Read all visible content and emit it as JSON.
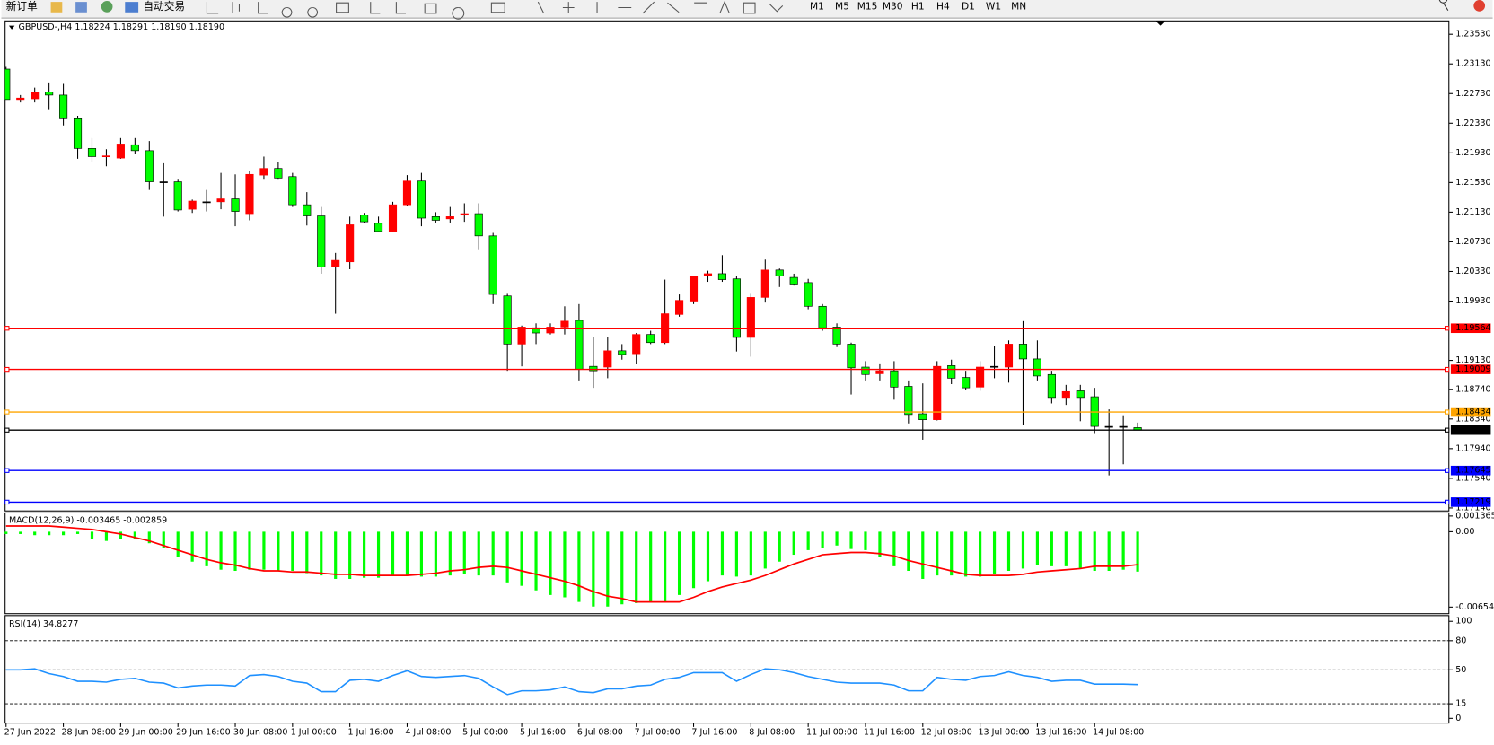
{
  "toolbar": {
    "new_order": "新订单",
    "auto_trading": "自动交易",
    "timeframes": [
      "M1",
      "M5",
      "M15",
      "M30",
      "H1",
      "H4",
      "D1",
      "W1",
      "MN"
    ]
  },
  "chart_data": [
    {
      "type": "candlestick",
      "title": "GBPUSD-,H4  1.18224 1.18291 1.18190 1.18190",
      "categories": [
        "27 Jun 2022",
        null,
        null,
        null,
        "28 Jun 08:00",
        null,
        null,
        null,
        "29 Jun 00:00",
        null,
        null,
        null,
        "29 Jun 16:00",
        null,
        null,
        null,
        "30 Jun 08:00",
        null,
        null,
        null,
        "1 Jul 00:00",
        null,
        null,
        null,
        "1 Jul 16:00",
        null,
        null,
        null,
        "4 Jul 08:00",
        null,
        null,
        null,
        "5 Jul 00:00",
        null,
        null,
        null,
        "5 Jul 16:00",
        null,
        null,
        null,
        "6 Jul 08:00",
        null,
        null,
        null,
        "7 Jul 00:00",
        null,
        null,
        null,
        "7 Jul 16:00",
        null,
        null,
        null,
        "8 Jul 08:00",
        null,
        null,
        null,
        "11 Jul 00:00",
        null,
        null,
        null,
        "11 Jul 16:00",
        null,
        null,
        null,
        "12 Jul 08:00",
        null,
        null,
        null,
        "13 Jul 00:00",
        null,
        null,
        null,
        "13 Jul 16:00",
        null,
        null,
        null,
        "14 Jul 08:00",
        null,
        null,
        null
      ],
      "open": [
        1.2306,
        1.2265,
        1.2266,
        1.2275,
        1.2271,
        1.2239,
        1.2199,
        1.2188,
        1.2186,
        1.2204,
        1.2196,
        1.2154,
        1.2154,
        1.2117,
        1.2127,
        1.2127,
        1.2131,
        1.2111,
        1.2163,
        1.2172,
        1.2161,
        1.2123,
        1.2108,
        1.2039,
        1.2046,
        1.2109,
        1.2098,
        1.2087,
        1.2123,
        1.2155,
        1.2107,
        1.2104,
        1.2109,
        1.2111,
        1.2081,
        1.2,
        1.1935,
        1.1957,
        1.195,
        1.1958,
        1.1967,
        1.1905,
        1.1904,
        1.1926,
        1.1922,
        1.1948,
        1.1937,
        1.1975,
        1.1993,
        1.2027,
        1.203,
        1.2023,
        1.1944,
        1.1998,
        1.2035,
        1.2025,
        1.2018,
        1.1986,
        1.1958,
        1.1935,
        1.1904,
        1.1895,
        1.1899,
        1.1878,
        1.1841,
        1.1833,
        1.1906,
        1.189,
        1.1877,
        1.1905,
        1.1904,
        1.1935,
        1.1915,
        1.1894,
        1.1863,
        1.1872,
        1.1864,
        1.1824,
        1.1824,
        1.18224
      ],
      "high": [
        1.2309,
        1.2271,
        1.2281,
        1.2288,
        1.2286,
        1.2243,
        1.2213,
        1.2198,
        1.2213,
        1.2213,
        1.2209,
        1.2179,
        1.2158,
        1.213,
        1.2143,
        1.2166,
        1.2164,
        1.2168,
        1.2188,
        1.2181,
        1.2166,
        1.214,
        1.212,
        1.2058,
        1.2107,
        1.2112,
        1.2107,
        1.2127,
        1.2163,
        1.2166,
        1.2113,
        1.212,
        1.2125,
        1.2125,
        1.2085,
        1.2004,
        1.196,
        1.1963,
        1.1963,
        1.1986,
        1.1989,
        1.1944,
        1.1944,
        1.1935,
        1.195,
        1.1953,
        1.2022,
        1.2002,
        1.2027,
        1.2034,
        1.2055,
        1.2027,
        1.2004,
        1.2049,
        1.2037,
        1.203,
        1.2023,
        1.1989,
        1.1963,
        1.1937,
        1.1912,
        1.1909,
        1.1912,
        1.1886,
        1.1882,
        1.1912,
        1.1914,
        1.1899,
        1.1912,
        1.1933,
        1.194,
        1.1966,
        1.194,
        1.1899,
        1.188,
        1.188,
        1.1876,
        1.1847,
        1.1839,
        1.18291
      ],
      "low": [
        1.2265,
        1.2261,
        1.2261,
        1.2252,
        1.223,
        1.2185,
        1.2181,
        1.2175,
        1.2185,
        1.2191,
        1.2143,
        1.2107,
        1.2114,
        1.2112,
        1.2114,
        1.2117,
        1.2094,
        1.2102,
        1.2158,
        1.2158,
        1.212,
        1.2095,
        1.203,
        1.1976,
        1.2036,
        1.2098,
        1.2086,
        1.2086,
        1.2121,
        1.2094,
        1.2099,
        1.2099,
        1.21,
        1.2063,
        1.1989,
        1.1899,
        1.1905,
        1.1935,
        1.1948,
        1.1948,
        1.1886,
        1.1876,
        1.1889,
        1.1914,
        1.1908,
        1.1935,
        1.1935,
        1.1972,
        1.1989,
        1.2019,
        1.2019,
        1.1925,
        1.1918,
        1.1991,
        1.2012,
        1.2014,
        1.1982,
        1.1953,
        1.1931,
        1.1867,
        1.1886,
        1.1886,
        1.186,
        1.1828,
        1.1806,
        1.1832,
        1.1881,
        1.1873,
        1.1872,
        1.1889,
        1.1883,
        1.1826,
        1.1886,
        1.1855,
        1.1853,
        1.1831,
        1.1815,
        1.1758,
        1.1773,
        1.1819
      ],
      "close": [
        1.2265,
        1.2267,
        1.2275,
        1.2271,
        1.2239,
        1.2199,
        1.2188,
        1.2189,
        1.2205,
        1.2196,
        1.2154,
        1.2154,
        1.2116,
        1.2128,
        1.2127,
        1.2131,
        1.2114,
        1.2164,
        1.2172,
        1.2159,
        1.2123,
        1.2108,
        1.2039,
        1.2048,
        1.2096,
        1.21,
        1.2087,
        1.2123,
        1.2155,
        1.2105,
        1.2102,
        1.2107,
        1.2111,
        1.2081,
        1.2002,
        1.1935,
        1.1958,
        1.195,
        1.1958,
        1.1966,
        1.1901,
        1.1899,
        1.1926,
        1.1921,
        1.1948,
        1.1937,
        1.1976,
        1.1994,
        1.2026,
        1.203,
        1.2022,
        1.1944,
        1.1998,
        1.2035,
        1.2027,
        1.2016,
        1.1986,
        1.1957,
        1.1935,
        1.1903,
        1.1894,
        1.1899,
        1.1877,
        1.184,
        1.1833,
        1.1905,
        1.1889,
        1.1876,
        1.1904,
        1.1905,
        1.1935,
        1.1915,
        1.1892,
        1.1863,
        1.1871,
        1.1863,
        1.1824,
        1.1824,
        1.1824,
        1.1819
      ],
      "up_color": "#ff0000",
      "down_color": "#00ff00",
      "ylim": [
        1.171,
        1.2371
      ],
      "yticks": [
        {
          "value": 1.2353,
          "label": "1.23530"
        },
        {
          "value": 1.2313,
          "label": "1.23130"
        },
        {
          "value": 1.2273,
          "label": "1.22730"
        },
        {
          "value": 1.2233,
          "label": "1.22330"
        },
        {
          "value": 1.2193,
          "label": "1.21930"
        },
        {
          "value": 1.2153,
          "label": "1.21530"
        },
        {
          "value": 1.2113,
          "label": "1.21130"
        },
        {
          "value": 1.2073,
          "label": "1.20730"
        },
        {
          "value": 1.2033,
          "label": "1.20330"
        },
        {
          "value": 1.1993,
          "label": "1.19930"
        },
        {
          "value": 1.1913,
          "label": "1.19130"
        },
        {
          "value": 1.1874,
          "label": "1.18740"
        },
        {
          "value": 1.1834,
          "label": "1.18340"
        },
        {
          "value": 1.1794,
          "label": "1.17940"
        },
        {
          "value": 1.1754,
          "label": "1.17540"
        },
        {
          "value": 1.1714,
          "label": "1.17140"
        }
      ],
      "levels": [
        {
          "value": 1.19564,
          "color": "#ff0000"
        },
        {
          "value": 1.19009,
          "color": "#ff0000"
        },
        {
          "value": 1.18434,
          "color": "#ffa500"
        },
        {
          "value": 1.1819,
          "label": "1.18190",
          "color": "#000000"
        },
        {
          "value": 1.17645,
          "color": "#0000ff"
        },
        {
          "value": 1.17219,
          "color": "#0000ff"
        }
      ]
    },
    {
      "type": "macd",
      "title": "MACD(12,26,9) -0.003465 -0.002859",
      "values": [
        -0.0002,
        -0.0002,
        -0.0003,
        -0.0003,
        -0.0003,
        -0.0002,
        -0.0006,
        -0.0008,
        -0.0006,
        -0.0006,
        -0.001,
        -0.0014,
        -0.0022,
        -0.0026,
        -0.003,
        -0.0033,
        -0.0034,
        -0.0033,
        -0.0033,
        -0.0034,
        -0.0034,
        -0.0036,
        -0.0038,
        -0.0041,
        -0.0041,
        -0.004,
        -0.004,
        -0.0038,
        -0.0038,
        -0.0039,
        -0.0039,
        -0.0038,
        -0.0037,
        -0.0038,
        -0.0038,
        -0.0044,
        -0.0047,
        -0.0051,
        -0.0055,
        -0.0057,
        -0.0061,
        -0.0065,
        -0.0065,
        -0.0063,
        -0.0062,
        -0.0061,
        -0.0061,
        -0.0055,
        -0.0049,
        -0.0043,
        -0.0038,
        -0.0039,
        -0.0038,
        -0.0032,
        -0.0026,
        -0.002,
        -0.0016,
        -0.0014,
        -0.0012,
        -0.0015,
        -0.0016,
        -0.0022,
        -0.003,
        -0.0034,
        -0.0041,
        -0.0038,
        -0.0038,
        -0.0039,
        -0.0039,
        -0.0037,
        -0.0034,
        -0.0032,
        -0.0029,
        -0.003,
        -0.003,
        -0.0032,
        -0.0034,
        -0.0034,
        -0.0033,
        -0.003465
      ],
      "color": "#00ff00",
      "signal_values": [
        0.0005,
        0.0005,
        0.0005,
        0.0005,
        0.0004,
        0.0003,
        0.0002,
        0,
        -0.0002,
        -0.0005,
        -0.0008,
        -0.0012,
        -0.0016,
        -0.002,
        -0.0024,
        -0.0027,
        -0.0029,
        -0.0032,
        -0.0034,
        -0.0034,
        -0.0035,
        -0.0035,
        -0.0036,
        -0.0037,
        -0.0037,
        -0.0038,
        -0.0038,
        -0.0038,
        -0.0038,
        -0.0037,
        -0.0036,
        -0.0034,
        -0.0033,
        -0.0031,
        -0.003,
        -0.0031,
        -0.0034,
        -0.0037,
        -0.004,
        -0.0043,
        -0.0047,
        -0.0052,
        -0.0056,
        -0.0058,
        -0.0061,
        -0.0061,
        -0.0061,
        -0.0061,
        -0.0057,
        -0.0052,
        -0.0048,
        -0.0045,
        -0.0042,
        -0.0038,
        -0.0033,
        -0.0028,
        -0.0024,
        -0.002,
        -0.0019,
        -0.0018,
        -0.0018,
        -0.0019,
        -0.0021,
        -0.0025,
        -0.0028,
        -0.0031,
        -0.0034,
        -0.0037,
        -0.0038,
        -0.0038,
        -0.0038,
        -0.0037,
        -0.0035,
        -0.0034,
        -0.0033,
        -0.0032,
        -0.003,
        -0.003,
        -0.003,
        -0.002859
      ],
      "signal_color": "#ff0000",
      "ylim": [
        -0.00712,
        0.00164
      ],
      "yticks": [
        0.001365,
        {
          "value": 0,
          "label": "0.00"
        },
        -0.006545
      ]
    },
    {
      "type": "line",
      "title": "RSI(14) 34.8277",
      "values": [
        50.0,
        50.0,
        51.0,
        46.1,
        43.1,
        38.2,
        38.2,
        37.3,
        40.2,
        41.2,
        37.3,
        36.3,
        31.4,
        33.3,
        34.3,
        34.3,
        33.3,
        44.1,
        45.1,
        43.1,
        38.2,
        36.3,
        27.5,
        27.5,
        39.2,
        40.2,
        38.2,
        44.1,
        49.0,
        43.1,
        42.2,
        43.1,
        44.1,
        41.2,
        32.4,
        24.5,
        28.4,
        28.4,
        29.4,
        32.4,
        27.5,
        26.5,
        30.4,
        30.4,
        33.3,
        34.3,
        40.2,
        42.2,
        47.1,
        47.1,
        47.1,
        38.2,
        45.1,
        51.0,
        50.0,
        47.1,
        43.1,
        40.2,
        37.3,
        36.3,
        36.3,
        36.3,
        34.3,
        28.4,
        28.4,
        42.2,
        40.2,
        39.2,
        43.1,
        44.1,
        48.0,
        44.1,
        42.2,
        38.2,
        39.2,
        39.2,
        35.3,
        35.3,
        35.3,
        34.8277
      ],
      "color": "#1e90ff",
      "ylim": [
        -4.9,
        105.9
      ],
      "yticks": [
        100,
        80,
        50,
        15,
        0
      ],
      "levels": [
        80,
        50,
        15
      ]
    }
  ]
}
